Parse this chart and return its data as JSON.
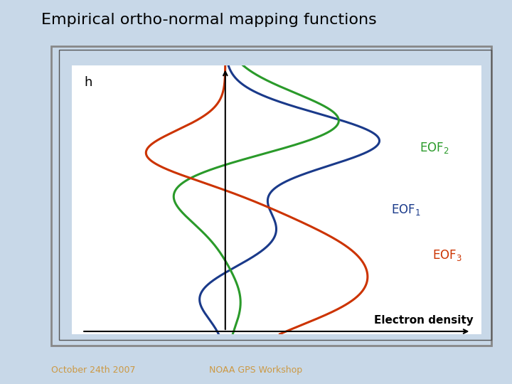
{
  "title": "Empirical ortho-normal mapping functions",
  "title_fontsize": 16,
  "bg_color": "#c8d8e8",
  "plot_bg_color": "#ffffff",
  "xlabel": "Electron density",
  "ylabel": "h",
  "eof1_color": "#1a3a8a",
  "eof2_color": "#2a9a2a",
  "eof3_color": "#cc3300",
  "eof1_label": "EOF",
  "eof2_label": "EOF",
  "eof3_label": "EOF",
  "footer_left": "October 24th 2007",
  "footer_right": "NOAA GPS Workshop",
  "outer_box_color": "#888888",
  "inner_box_color": "#555555"
}
